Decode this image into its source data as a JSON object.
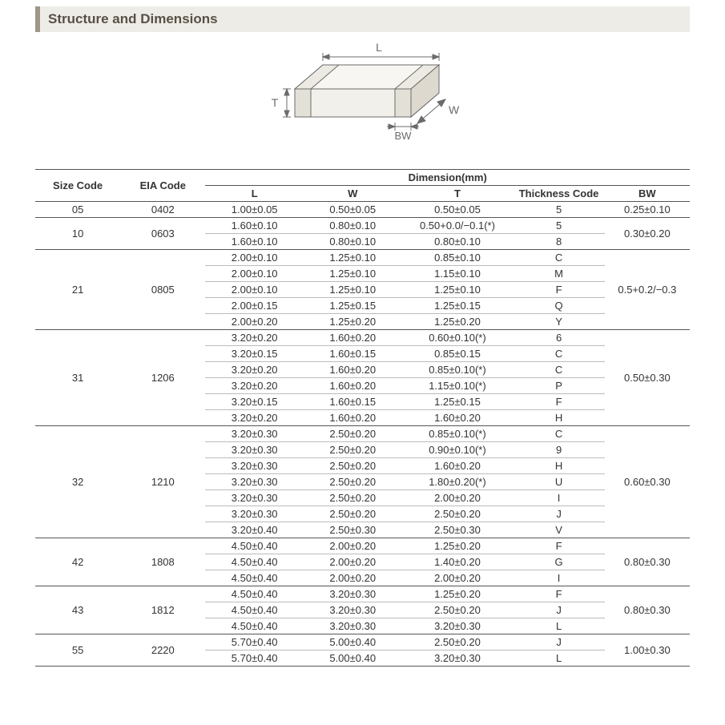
{
  "header": {
    "title": "Structure and Dimensions"
  },
  "diagram": {
    "labels": {
      "L": "L",
      "W": "W",
      "T": "T",
      "BW": "BW"
    },
    "colors": {
      "stroke": "#6b6b6b",
      "fill_top": "#f7f6f2",
      "fill_side": "#e9e7df",
      "fill_front": "#f2f0ea",
      "text": "#6b6b6b"
    },
    "font_size": 14
  },
  "table": {
    "super_header": "Dimension(mm)",
    "columns": {
      "size": "Size Code",
      "eia": "EIA Code",
      "L": "L",
      "W": "W",
      "T": "T",
      "tc": "Thickness  Code",
      "bw": "BW"
    },
    "groups": [
      {
        "size": "05",
        "eia": "0402",
        "bw": "0.25±0.10",
        "rows": [
          {
            "L": "1.00±0.05",
            "W": "0.50±0.05",
            "T": "0.50±0.05",
            "tc": "5"
          }
        ]
      },
      {
        "size": "10",
        "eia": "0603",
        "bw": "0.30±0.20",
        "rows": [
          {
            "L": "1.60±0.10",
            "W": "0.80±0.10",
            "T": "0.50+0.0/−0.1(*)",
            "tc": "5"
          },
          {
            "L": "1.60±0.10",
            "W": "0.80±0.10",
            "T": "0.80±0.10",
            "tc": "8"
          }
        ]
      },
      {
        "size": "21",
        "eia": "0805",
        "bw": "0.5+0.2/−0.3",
        "rows": [
          {
            "L": "2.00±0.10",
            "W": "1.25±0.10",
            "T": "0.85±0.10",
            "tc": "C"
          },
          {
            "L": "2.00±0.10",
            "W": "1.25±0.10",
            "T": "1.15±0.10",
            "tc": "M"
          },
          {
            "L": "2.00±0.10",
            "W": "1.25±0.10",
            "T": "1.25±0.10",
            "tc": "F"
          },
          {
            "L": "2.00±0.15",
            "W": "1.25±0.15",
            "T": "1.25±0.15",
            "tc": "Q"
          },
          {
            "L": "2.00±0.20",
            "W": "1.25±0.20",
            "T": "1.25±0.20",
            "tc": "Y"
          }
        ]
      },
      {
        "size": "31",
        "eia": "1206",
        "bw": "0.50±0.30",
        "rows": [
          {
            "L": "3.20±0.20",
            "W": "1.60±0.20",
            "T": "0.60±0.10(*)",
            "tc": "6"
          },
          {
            "L": "3.20±0.15",
            "W": "1.60±0.15",
            "T": "0.85±0.15",
            "tc": "C"
          },
          {
            "L": "3.20±0.20",
            "W": "1.60±0.20",
            "T": "0.85±0.10(*)",
            "tc": "C"
          },
          {
            "L": "3.20±0.20",
            "W": "1.60±0.20",
            "T": "1.15±0.10(*)",
            "tc": "P"
          },
          {
            "L": "3.20±0.15",
            "W": "1.60±0.15",
            "T": "1.25±0.15",
            "tc": "F"
          },
          {
            "L": "3.20±0.20",
            "W": "1.60±0.20",
            "T": "1.60±0.20",
            "tc": "H"
          }
        ]
      },
      {
        "size": "32",
        "eia": "1210",
        "bw": "0.60±0.30",
        "rows": [
          {
            "L": "3.20±0.30",
            "W": "2.50±0.20",
            "T": "0.85±0.10(*)",
            "tc": "C"
          },
          {
            "L": "3.20±0.30",
            "W": "2.50±0.20",
            "T": "0.90±0.10(*)",
            "tc": "9"
          },
          {
            "L": "3.20±0.30",
            "W": "2.50±0.20",
            "T": "1.60±0.20",
            "tc": "H"
          },
          {
            "L": "3.20±0.30",
            "W": "2.50±0.20",
            "T": "1.80±0.20(*)",
            "tc": "U"
          },
          {
            "L": "3.20±0.30",
            "W": "2.50±0.20",
            "T": "2.00±0.20",
            "tc": "I"
          },
          {
            "L": "3.20±0.30",
            "W": "2.50±0.20",
            "T": "2.50±0.20",
            "tc": "J"
          },
          {
            "L": "3.20±0.40",
            "W": "2.50±0.30",
            "T": "2.50±0.30",
            "tc": "V"
          }
        ]
      },
      {
        "size": "42",
        "eia": "1808",
        "bw": "0.80±0.30",
        "rows": [
          {
            "L": "4.50±0.40",
            "W": "2.00±0.20",
            "T": "1.25±0.20",
            "tc": "F"
          },
          {
            "L": "4.50±0.40",
            "W": "2.00±0.20",
            "T": "1.40±0.20",
            "tc": "G"
          },
          {
            "L": "4.50±0.40",
            "W": "2.00±0.20",
            "T": "2.00±0.20",
            "tc": "I"
          }
        ]
      },
      {
        "size": "43",
        "eia": "1812",
        "bw": "0.80±0.30",
        "rows": [
          {
            "L": "4.50±0.40",
            "W": "3.20±0.30",
            "T": "1.25±0.20",
            "tc": "F"
          },
          {
            "L": "4.50±0.40",
            "W": "3.20±0.30",
            "T": "2.50±0.20",
            "tc": "J"
          },
          {
            "L": "4.50±0.40",
            "W": "3.20±0.30",
            "T": "3.20±0.30",
            "tc": "L"
          }
        ]
      },
      {
        "size": "55",
        "eia": "2220",
        "bw": "1.00±0.30",
        "rows": [
          {
            "L": "5.70±0.40",
            "W": "5.00±0.40",
            "T": "2.50±0.20",
            "tc": "J"
          },
          {
            "L": "5.70±0.40",
            "W": "5.00±0.40",
            "T": "3.20±0.30",
            "tc": "L"
          }
        ]
      }
    ]
  },
  "colors": {
    "header_bg": "#eeece6",
    "header_accent": "#9e968a",
    "header_text": "#585047",
    "border_strong": "#555555",
    "border_thin": "#bcbcbc",
    "text": "#333333",
    "background": "#ffffff"
  }
}
